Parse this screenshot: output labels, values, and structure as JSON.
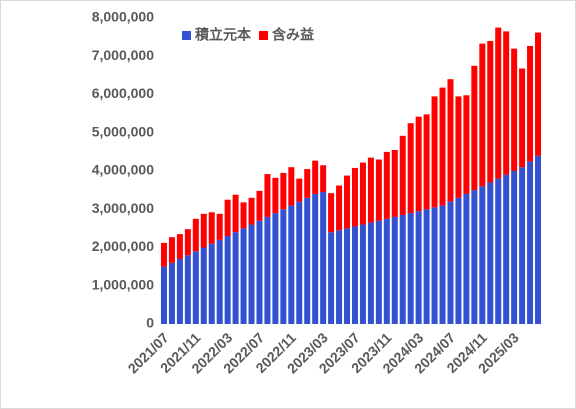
{
  "chart_data": {
    "type": "stacked_bar",
    "categories": [
      "2021/07",
      null,
      null,
      null,
      "2021/11",
      null,
      null,
      null,
      "2022/03",
      null,
      null,
      null,
      "2022/07",
      null,
      null,
      null,
      "2022/11",
      null,
      null,
      null,
      "2023/03",
      null,
      null,
      null,
      "2023/07",
      null,
      null,
      null,
      "2023/11",
      null,
      null,
      null,
      "2024/03",
      null,
      null,
      null,
      "2024/07",
      null,
      null,
      null,
      "2024/11",
      null,
      null,
      null,
      "2025/03",
      null,
      null,
      null
    ],
    "series": [
      {
        "name": "積立元本",
        "color": "#3451d1",
        "values": [
          1500000,
          1600000,
          1700000,
          1800000,
          1900000,
          2000000,
          2100000,
          2200000,
          2300000,
          2400000,
          2500000,
          2600000,
          2700000,
          2800000,
          2900000,
          3000000,
          3100000,
          3200000,
          3300000,
          3400000,
          3450000,
          2400000,
          2450000,
          2500000,
          2550000,
          2600000,
          2650000,
          2700000,
          2750000,
          2800000,
          2850000,
          2900000,
          2950000,
          3000000,
          3050000,
          3100000,
          3200000,
          3300000,
          3400000,
          3500000,
          3600000,
          3700000,
          3800000,
          3900000,
          4000000,
          4100000,
          4250000,
          4400000
        ]
      },
      {
        "name": "含み益",
        "color": "#ff0000",
        "values": [
          620000,
          670000,
          650000,
          680000,
          850000,
          880000,
          820000,
          680000,
          950000,
          980000,
          680000,
          700000,
          780000,
          1120000,
          920000,
          950000,
          1000000,
          600000,
          750000,
          870000,
          700000,
          1020000,
          1170000,
          1380000,
          1530000,
          1620000,
          1700000,
          1600000,
          1750000,
          1750000,
          2070000,
          2350000,
          2470000,
          2480000,
          2900000,
          3080000,
          3200000,
          2650000,
          2580000,
          3250000,
          3730000,
          3700000,
          3950000,
          3750000,
          3200000,
          2580000,
          3020000,
          3220000
        ]
      }
    ],
    "ylim": [
      0,
      8000000
    ],
    "yticks": [
      0,
      {
        "value": 1000000,
        "label": "1,000,000"
      },
      {
        "value": 2000000,
        "label": "2,000,000"
      },
      {
        "value": 3000000,
        "label": "3,000,000"
      },
      {
        "value": 4000000,
        "label": "4,000,000"
      },
      {
        "value": 5000000,
        "label": "5,000,000"
      },
      {
        "value": 6000000,
        "label": "6,000,000"
      },
      {
        "value": 7000000,
        "label": "7,000,000"
      },
      {
        "value": 8000000,
        "label": "8,000,000"
      }
    ],
    "grid": false,
    "legend": "top-left"
  }
}
